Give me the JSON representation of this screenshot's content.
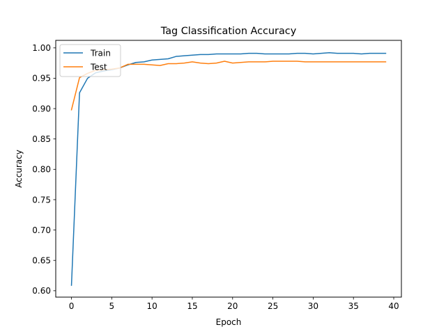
{
  "chart_data": {
    "type": "line",
    "title": "Tag Classification Accuracy",
    "xlabel": "Epoch",
    "ylabel": "Accuracy",
    "xlim": [
      -1.95,
      40.95
    ],
    "ylim": [
      0.5895,
      1.0124
    ],
    "xticks": [
      0,
      5,
      10,
      15,
      20,
      25,
      30,
      35,
      40
    ],
    "yticks": [
      0.6,
      0.65,
      0.7,
      0.75,
      0.8,
      0.85,
      0.9,
      0.95,
      1.0
    ],
    "ytick_labels": [
      "0.60",
      "0.65",
      "0.70",
      "0.75",
      "0.80",
      "0.85",
      "0.90",
      "0.95",
      "1.00"
    ],
    "xtick_labels": [
      "0",
      "5",
      "10",
      "15",
      "20",
      "25",
      "30",
      "35",
      "40"
    ],
    "grid": false,
    "legend_position": "upper-left",
    "x": [
      0,
      1,
      2,
      3,
      4,
      5,
      6,
      7,
      8,
      9,
      10,
      11,
      12,
      13,
      14,
      15,
      16,
      17,
      18,
      19,
      20,
      21,
      22,
      23,
      24,
      25,
      26,
      27,
      28,
      29,
      30,
      31,
      32,
      33,
      34,
      35,
      36,
      37,
      38,
      39
    ],
    "series": [
      {
        "name": "Train",
        "color": "#1f77b4",
        "values": [
          0.609,
          0.926,
          0.95,
          0.959,
          0.962,
          0.964,
          0.967,
          0.972,
          0.976,
          0.977,
          0.98,
          0.981,
          0.982,
          0.986,
          0.987,
          0.988,
          0.989,
          0.989,
          0.99,
          0.99,
          0.99,
          0.99,
          0.991,
          0.991,
          0.99,
          0.99,
          0.99,
          0.99,
          0.991,
          0.991,
          0.99,
          0.991,
          0.992,
          0.991,
          0.991,
          0.991,
          0.99,
          0.991,
          0.991,
          0.991
        ]
      },
      {
        "name": "Test",
        "color": "#ff7f0e",
        "values": [
          0.898,
          0.951,
          0.958,
          0.963,
          0.964,
          0.965,
          0.967,
          0.973,
          0.973,
          0.973,
          0.972,
          0.971,
          0.974,
          0.974,
          0.975,
          0.977,
          0.975,
          0.974,
          0.975,
          0.978,
          0.975,
          0.976,
          0.977,
          0.977,
          0.977,
          0.978,
          0.978,
          0.978,
          0.978,
          0.977,
          0.977,
          0.977,
          0.977,
          0.977,
          0.977,
          0.977,
          0.977,
          0.977,
          0.977,
          0.977
        ]
      }
    ]
  }
}
